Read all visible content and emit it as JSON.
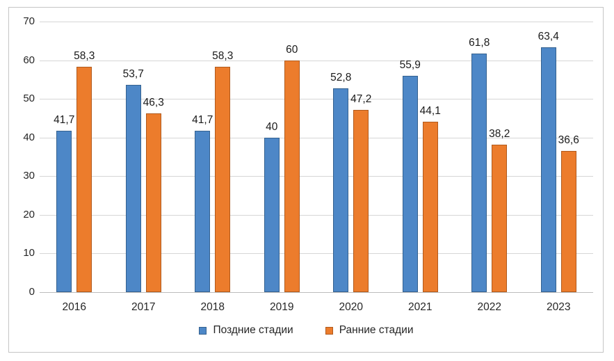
{
  "chart_data": {
    "type": "bar",
    "title": "",
    "xlabel": "",
    "ylabel": "",
    "categories": [
      "2016",
      "2017",
      "2018",
      "2019",
      "2020",
      "2021",
      "2022",
      "2023"
    ],
    "series": [
      {
        "name": "Поздние стадии",
        "id": "late-stages",
        "color": "#4d87c7",
        "border_color": "#34618f",
        "values": [
          41.7,
          53.7,
          41.7,
          40,
          52.8,
          55.9,
          61.8,
          63.4
        ],
        "value_labels": [
          "41,7",
          "53,7",
          "41,7",
          "40",
          "52,8",
          "55,9",
          "61,8",
          "63,4"
        ]
      },
      {
        "name": "Ранние стадии",
        "id": "early-stages",
        "color": "#ec7c2c",
        "border_color": "#b05a1d",
        "values": [
          58.3,
          46.3,
          58.3,
          60,
          47.2,
          44.1,
          38.2,
          36.6
        ],
        "value_labels": [
          "58,3",
          "46,3",
          "58,3",
          "60",
          "47,2",
          "44,1",
          "38,2",
          "36,6"
        ]
      }
    ],
    "ylim": [
      0,
      70
    ],
    "y_ticks": [
      0,
      10,
      20,
      30,
      40,
      50,
      60,
      70
    ],
    "y_tick_labels": [
      "0",
      "10",
      "20",
      "30",
      "40",
      "50",
      "60",
      "70"
    ],
    "grid": true,
    "legend_position": "bottom",
    "gridline_color": "#d6d6d6",
    "axis_line_color": "#bdbdbd",
    "text_color": "#262626",
    "frame_border_color": "#c5c5c5"
  }
}
